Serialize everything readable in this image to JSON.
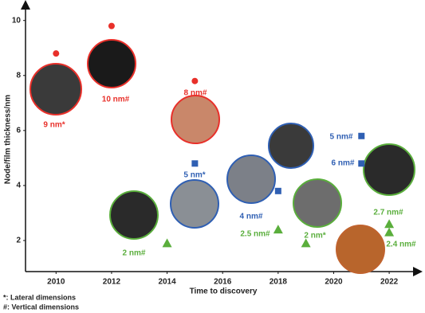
{
  "chart_data": {
    "type": "scatter",
    "xlabel": "Time to discovery",
    "ylabel": "Node/film thickness/nm",
    "xlim": [
      2008.9,
      2023.06
    ],
    "ylim": [
      0.87,
      10.6
    ],
    "xticks": [
      2010,
      2012,
      2014,
      2016,
      2018,
      2020,
      2022
    ],
    "yticks": [
      2,
      4,
      6,
      8,
      10
    ],
    "series": [
      {
        "marker": "circle",
        "color": "#e8302a",
        "x": [
          2010,
          2012,
          2015
        ],
        "values": [
          8.8,
          9.8,
          7.8
        ]
      },
      {
        "marker": "square",
        "color": "#2f5fb3",
        "x": [
          2015,
          2018,
          2021,
          2021
        ],
        "values": [
          4.8,
          3.8,
          5.8,
          4.8
        ]
      },
      {
        "marker": "triangle",
        "color": "#5aae3c",
        "x": [
          2014,
          2018,
          2019,
          2022,
          2022
        ],
        "values": [
          1.9,
          2.4,
          1.9,
          2.6,
          2.3
        ]
      }
    ],
    "annotations": [
      "9 nm*",
      "10 nm#",
      "8 nm#",
      "2 nm#",
      "5 nm*",
      "4 nm#",
      "5 nm#",
      "6 nm#",
      "2.5 nm#",
      "2 nm*",
      "2.7 nm#",
      "2.4 nm#"
    ],
    "footnotes": [
      "*: Lateral dimensions",
      "#: Vertical dimensions"
    ]
  }
}
